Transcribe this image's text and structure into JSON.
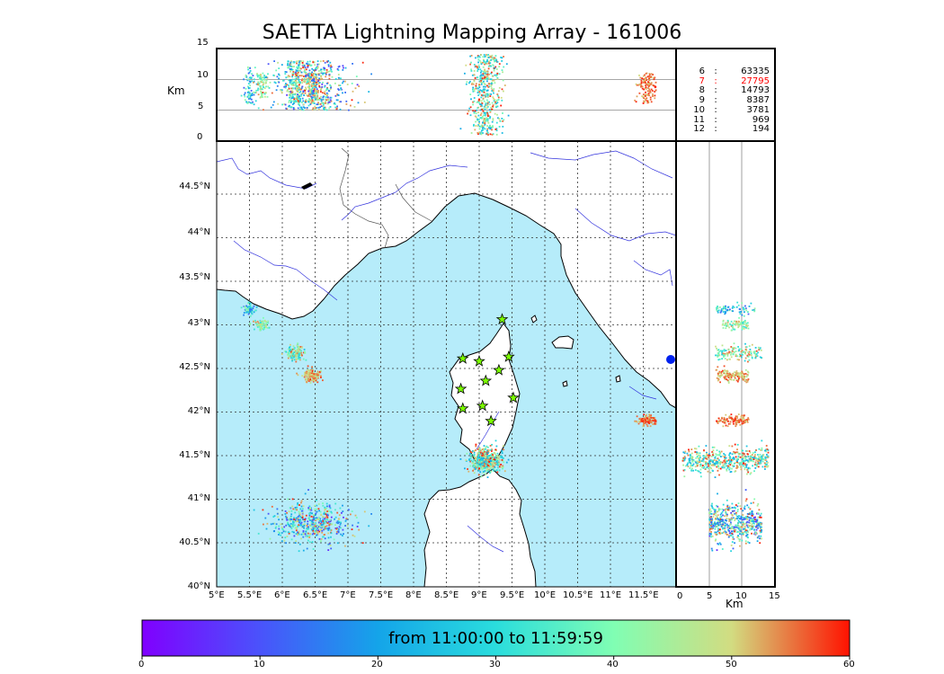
{
  "title": "SAETTA Lightning Mapping Array - 161006",
  "colorbar_label": "from 11:00:00 to 11:59:59",
  "colorbar_ticks": [
    "0",
    "10",
    "20",
    "30",
    "40",
    "50",
    "60"
  ],
  "colorbar_range": [
    0,
    60
  ],
  "km_label_top": "Km",
  "km_label_right": "Km",
  "alt_ticks": [
    "0",
    "5",
    "10",
    "15"
  ],
  "lat_ticks": [
    "40°N",
    "40.5°N",
    "41°N",
    "41.5°N",
    "42°N",
    "42.5°N",
    "43°N",
    "43.5°N",
    "44°N",
    "44.5°N"
  ],
  "lon_ticks": [
    "5°E",
    "5.5°E",
    "6°E",
    "6.5°E",
    "7°E",
    "7.5°E",
    "8°E",
    "8.5°E",
    "9°E",
    "9.5°E",
    "10°E",
    "10.5°E",
    "11°E",
    "11.5°E"
  ],
  "stats": [
    {
      "k": "6",
      "v": "63335",
      "highlight": false
    },
    {
      "k": "7",
      "v": "27795",
      "highlight": true
    },
    {
      "k": "8",
      "v": "14793",
      "highlight": false
    },
    {
      "k": "9",
      "v": "8387",
      "highlight": false
    },
    {
      "k": "10",
      "v": "3781",
      "highlight": false
    },
    {
      "k": "11",
      "v": "969",
      "highlight": false
    },
    {
      "k": "12",
      "v": "194",
      "highlight": false
    }
  ],
  "colors": {
    "sea": "#b6ecfa",
    "land": "#ffffff",
    "rivers": "#3333dd",
    "highlight": "#ff0000",
    "stations": "#7cff00"
  },
  "map_extent": {
    "lon": [
      5,
      12
    ],
    "lat": [
      40,
      45
    ]
  },
  "stations": [
    {
      "lon": 8.75,
      "lat": 42.56
    },
    {
      "lon": 9.0,
      "lat": 42.53
    },
    {
      "lon": 9.35,
      "lat": 43.0
    },
    {
      "lon": 9.45,
      "lat": 42.58
    },
    {
      "lon": 9.3,
      "lat": 42.43
    },
    {
      "lon": 9.1,
      "lat": 42.31
    },
    {
      "lon": 8.72,
      "lat": 42.22
    },
    {
      "lon": 9.52,
      "lat": 42.12
    },
    {
      "lon": 8.75,
      "lat": 42.0
    },
    {
      "lon": 9.05,
      "lat": 42.03
    },
    {
      "lon": 9.18,
      "lat": 41.86
    }
  ],
  "cells": [
    {
      "lon": 5.5,
      "lat": 43.12,
      "rlon": 0.08,
      "rlat": 0.06,
      "n": 70,
      "t": [
        10,
        45
      ],
      "z": [
        6,
        12
      ]
    },
    {
      "lon": 5.68,
      "lat": 42.94,
      "rlon": 0.1,
      "rlat": 0.05,
      "n": 80,
      "t": [
        30,
        55
      ],
      "z": [
        7,
        11
      ]
    },
    {
      "lon": 6.2,
      "lat": 42.62,
      "rlon": 0.12,
      "rlat": 0.08,
      "n": 140,
      "t": [
        25,
        58
      ],
      "z": [
        6,
        13
      ]
    },
    {
      "lon": 6.45,
      "lat": 42.37,
      "rlon": 0.12,
      "rlat": 0.06,
      "n": 160,
      "t": [
        45,
        60
      ],
      "z": [
        6,
        11
      ]
    },
    {
      "lon": 6.45,
      "lat": 40.72,
      "rlon": 0.55,
      "rlat": 0.2,
      "n": 520,
      "t": [
        5,
        60
      ],
      "z": [
        5,
        13
      ]
    },
    {
      "lon": 9.1,
      "lat": 41.42,
      "rlon": 0.22,
      "rlat": 0.12,
      "n": 500,
      "t": [
        20,
        60
      ],
      "z": [
        1,
        14
      ]
    },
    {
      "lon": 11.55,
      "lat": 41.87,
      "rlon": 0.14,
      "rlat": 0.05,
      "n": 130,
      "t": [
        50,
        60
      ],
      "z": [
        6,
        11
      ]
    }
  ]
}
